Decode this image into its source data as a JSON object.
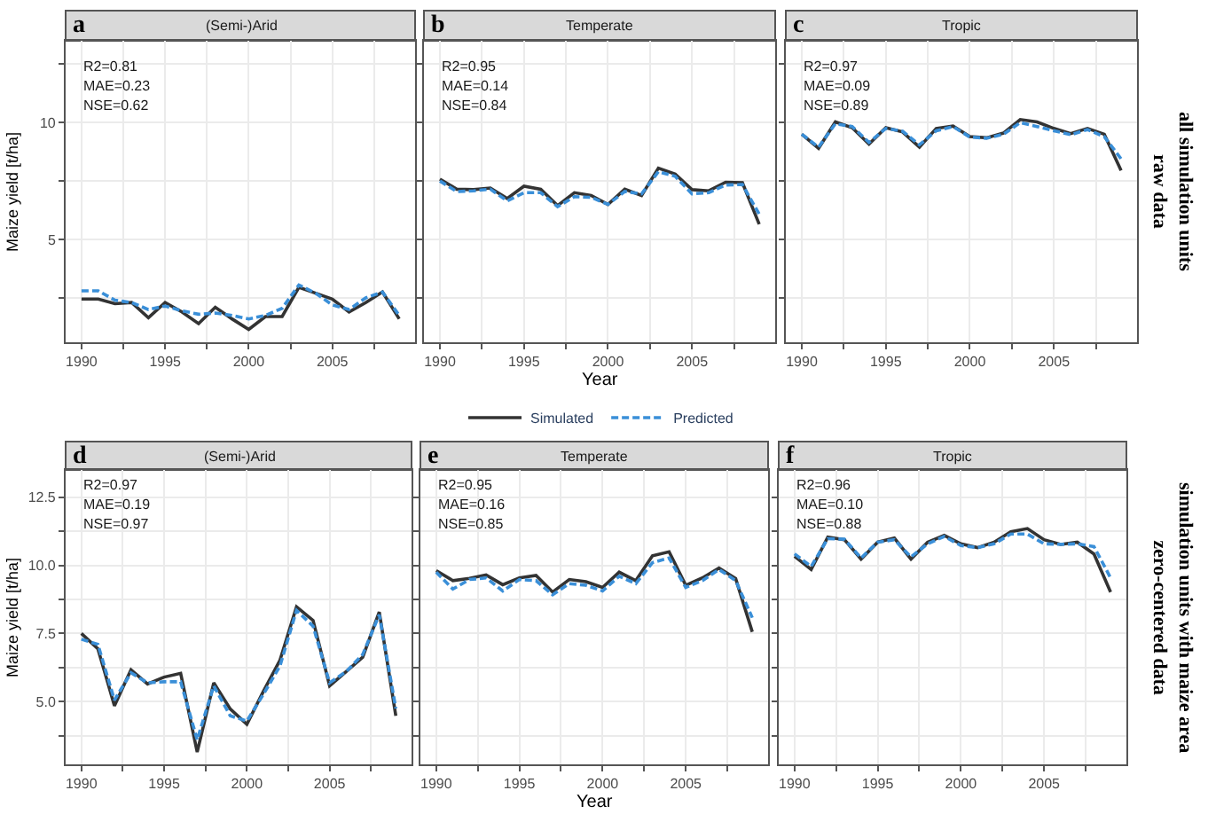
{
  "chart_data": [
    {
      "type": "line",
      "title": "(Semi-)Arid",
      "ylabel": "Maize yield [t/ha]",
      "annotations": [
        "a",
        "R2=0.81",
        "MAE=0.23",
        "NSE=0.62"
      ],
      "x": [
        1990,
        1991,
        1992,
        1993,
        1994,
        1995,
        1996,
        1997,
        1998,
        1999,
        2000,
        2001,
        2002,
        2003,
        2004,
        2005,
        2006,
        2007,
        2008,
        2009
      ],
      "xlim": [
        1989.05,
        2009.95
      ],
      "xticks": [
        1990,
        {
          "value": 1992.5,
          "label": null
        },
        1995,
        {
          "value": 1997.5,
          "label": null
        },
        2000,
        {
          "value": 2002.5,
          "label": null
        },
        2005,
        {
          "value": 2007.5,
          "label": null
        }
      ],
      "ylim": [
        0.6,
        13.5
      ],
      "yticks": [
        {
          "value": 2.5,
          "label": null
        },
        5,
        {
          "value": 7.5,
          "label": null
        },
        10,
        {
          "value": 12.5,
          "label": null
        }
      ],
      "grid": true,
      "marker": "none",
      "legend": "bottom",
      "series": [
        {
          "name": "Simulated",
          "color": "#333333",
          "line_style": "solid",
          "values": [
            2.45,
            2.45,
            2.25,
            2.3,
            1.65,
            2.3,
            1.9,
            1.4,
            2.1,
            1.6,
            1.15,
            1.7,
            1.7,
            2.95,
            2.7,
            2.45,
            1.9,
            2.3,
            2.75,
            1.6
          ]
        },
        {
          "name": "Predicted",
          "color": "#3a8fd8",
          "line_style": "dashed",
          "values": [
            2.8,
            2.8,
            2.4,
            2.3,
            2.0,
            2.15,
            1.95,
            1.8,
            1.85,
            1.75,
            1.6,
            1.75,
            2.05,
            3.05,
            2.7,
            2.2,
            2.0,
            2.5,
            2.75,
            1.75
          ]
        }
      ]
    },
    {
      "type": "line",
      "title": "Temperate",
      "xlabel": "Year",
      "annotations": [
        "b",
        "R2=0.95",
        "MAE=0.14",
        "NSE=0.84"
      ],
      "x": [
        1990,
        1991,
        1992,
        1993,
        1994,
        1995,
        1996,
        1997,
        1998,
        1999,
        2000,
        2001,
        2002,
        2003,
        2004,
        2005,
        2006,
        2007,
        2008,
        2009
      ],
      "xlim": [
        1989.05,
        2009.95
      ],
      "xticks": [
        1990,
        {
          "value": 1992.5,
          "label": null
        },
        1995,
        {
          "value": 1997.5,
          "label": null
        },
        2000,
        {
          "value": 2002.5,
          "label": null
        },
        2005,
        {
          "value": 2007.5,
          "label": null
        }
      ],
      "ylim": [
        0.6,
        13.5
      ],
      "yticks": [
        {
          "value": 2.5,
          "label": null
        },
        5,
        {
          "value": 7.5,
          "label": null
        },
        10,
        {
          "value": 12.5,
          "label": null
        }
      ],
      "grid": true,
      "marker": "none",
      "tick_labels": "x",
      "series": [
        {
          "color": "#333333",
          "line_style": "solid",
          "values": [
            7.58,
            7.15,
            7.13,
            7.2,
            6.75,
            7.28,
            7.15,
            6.45,
            7.0,
            6.88,
            6.5,
            7.15,
            6.88,
            8.05,
            7.8,
            7.13,
            7.08,
            7.45,
            7.43,
            5.65
          ]
        },
        {
          "color": "#3a8fd8",
          "line_style": "dashed",
          "values": [
            7.5,
            7.05,
            7.08,
            7.15,
            6.65,
            7.0,
            7.0,
            6.4,
            6.83,
            6.8,
            6.5,
            7.05,
            6.95,
            7.9,
            7.7,
            6.95,
            7.0,
            7.33,
            7.35,
            6.08
          ]
        }
      ]
    },
    {
      "type": "line",
      "title": "Tropic",
      "annotations": [
        "c",
        "R2=0.97",
        "MAE=0.09",
        "NSE=0.89",
        "all simulation units\nraw data"
      ],
      "x": [
        1990,
        1991,
        1992,
        1993,
        1994,
        1995,
        1996,
        1997,
        1998,
        1999,
        2000,
        2001,
        2002,
        2003,
        2004,
        2005,
        2006,
        2007,
        2008,
        2009
      ],
      "xlim": [
        1989.05,
        2009.95
      ],
      "xticks": [
        1990,
        {
          "value": 1992.5,
          "label": null
        },
        1995,
        {
          "value": 1997.5,
          "label": null
        },
        2000,
        {
          "value": 2002.5,
          "label": null
        },
        2005,
        {
          "value": 2007.5,
          "label": null
        }
      ],
      "ylim": [
        0.6,
        13.5
      ],
      "yticks": [
        {
          "value": 2.5,
          "label": null
        },
        5,
        {
          "value": 7.5,
          "label": null
        },
        10,
        {
          "value": 12.5,
          "label": null
        }
      ],
      "grid": true,
      "marker": "none",
      "tick_labels": "x",
      "series": [
        {
          "color": "#333333",
          "line_style": "solid",
          "values": [
            9.5,
            8.9,
            10.03,
            9.78,
            9.08,
            9.78,
            9.6,
            8.95,
            9.75,
            9.85,
            9.4,
            9.35,
            9.55,
            10.13,
            10.03,
            9.75,
            9.53,
            9.75,
            9.5,
            7.95
          ]
        },
        {
          "color": "#3a8fd8",
          "line_style": "dashed",
          "values": [
            9.5,
            8.95,
            9.95,
            9.83,
            9.15,
            9.75,
            9.63,
            9.05,
            9.65,
            9.83,
            9.38,
            9.33,
            9.5,
            10.0,
            9.83,
            9.65,
            9.48,
            9.7,
            9.4,
            8.45
          ]
        }
      ]
    },
    {
      "type": "line",
      "title": "(Semi-)Arid",
      "ylabel": "Maize yield [t/ha]",
      "annotations": [
        "d",
        "R2=0.97",
        "MAE=0.19",
        "NSE=0.97"
      ],
      "x": [
        1990,
        1991,
        1992,
        1993,
        1994,
        1995,
        1996,
        1997,
        1998,
        1999,
        2000,
        2001,
        2002,
        2003,
        2004,
        2005,
        2006,
        2007,
        2008,
        2009
      ],
      "xlim": [
        1989.05,
        2009.95
      ],
      "xticks": [
        1990,
        {
          "value": 1992.5,
          "label": null
        },
        1995,
        {
          "value": 1997.5,
          "label": null
        },
        2000,
        {
          "value": 2002.5,
          "label": null
        },
        2005,
        {
          "value": 2007.5,
          "label": null
        }
      ],
      "ylim": [
        2.7,
        13.5
      ],
      "yticks": [
        {
          "value": 3.75,
          "label": null
        },
        {
          "value": 5,
          "label": "5.0"
        },
        {
          "value": 6.25,
          "label": null
        },
        7.5,
        {
          "value": 8.75,
          "label": null
        },
        {
          "value": 10,
          "label": "10.0"
        },
        {
          "value": 11.25,
          "label": null
        },
        12.5
      ],
      "grid": true,
      "marker": "none",
      "series": [
        {
          "color": "#333333",
          "line_style": "solid",
          "values": [
            7.5,
            6.94,
            4.85,
            6.17,
            5.65,
            5.9,
            6.04,
            3.15,
            5.69,
            4.73,
            4.17,
            5.38,
            6.52,
            8.48,
            7.98,
            5.58,
            6.1,
            6.63,
            8.29,
            4.48
          ]
        },
        {
          "color": "#3a8fd8",
          "line_style": "dashed",
          "values": [
            7.29,
            7.1,
            5.06,
            6.06,
            5.69,
            5.73,
            5.73,
            3.6,
            5.58,
            4.48,
            4.29,
            5.27,
            6.31,
            8.35,
            7.77,
            5.69,
            6.1,
            6.73,
            8.19,
            4.75
          ]
        }
      ]
    },
    {
      "type": "line",
      "title": "Temperate",
      "xlabel": "Year",
      "annotations": [
        "e",
        "R2=0.95",
        "MAE=0.16",
        "NSE=0.85"
      ],
      "x": [
        1990,
        1991,
        1992,
        1993,
        1994,
        1995,
        1996,
        1997,
        1998,
        1999,
        2000,
        2001,
        2002,
        2003,
        2004,
        2005,
        2006,
        2007,
        2008,
        2009
      ],
      "xlim": [
        1989.05,
        2009.95
      ],
      "xticks": [
        1990,
        {
          "value": 1992.5,
          "label": null
        },
        1995,
        {
          "value": 1997.5,
          "label": null
        },
        2000,
        {
          "value": 2002.5,
          "label": null
        },
        2005,
        {
          "value": 2007.5,
          "label": null
        }
      ],
      "ylim": [
        2.7,
        13.5
      ],
      "yticks": [
        {
          "value": 3.75,
          "label": null
        },
        5,
        {
          "value": 6.25,
          "label": null
        },
        7.5,
        {
          "value": 8.75,
          "label": null
        },
        10,
        {
          "value": 11.25,
          "label": null
        },
        12.5
      ],
      "grid": true,
      "marker": "none",
      "tick_labels": "x",
      "series": [
        {
          "color": "#333333",
          "line_style": "solid",
          "values": [
            9.81,
            9.44,
            9.52,
            9.65,
            9.29,
            9.54,
            9.63,
            9.02,
            9.48,
            9.4,
            9.19,
            9.75,
            9.44,
            10.35,
            10.5,
            9.27,
            9.54,
            9.9,
            9.52,
            7.56
          ]
        },
        {
          "color": "#3a8fd8",
          "line_style": "dashed",
          "values": [
            9.75,
            9.13,
            9.48,
            9.54,
            9.06,
            9.48,
            9.44,
            8.92,
            9.33,
            9.27,
            9.06,
            9.6,
            9.33,
            10.1,
            10.27,
            9.19,
            9.44,
            9.85,
            9.44,
            8.08
          ]
        }
      ]
    },
    {
      "type": "line",
      "title": "Tropic",
      "annotations": [
        "f",
        "R2=0.96",
        "MAE=0.10",
        "NSE=0.88",
        "simulation units with maize area\nzero-centered data"
      ],
      "x": [
        1990,
        1991,
        1992,
        1993,
        1994,
        1995,
        1996,
        1997,
        1998,
        1999,
        2000,
        2001,
        2002,
        2003,
        2004,
        2005,
        2006,
        2007,
        2008,
        2009
      ],
      "xlim": [
        1989.05,
        2009.95
      ],
      "xticks": [
        1990,
        {
          "value": 1992.5,
          "label": null
        },
        1995,
        {
          "value": 1997.5,
          "label": null
        },
        2000,
        {
          "value": 2002.5,
          "label": null
        },
        2005,
        {
          "value": 2007.5,
          "label": null
        }
      ],
      "ylim": [
        2.7,
        13.5
      ],
      "yticks": [
        {
          "value": 3.75,
          "label": null
        },
        5,
        {
          "value": 6.25,
          "label": null
        },
        7.5,
        {
          "value": 8.75,
          "label": null
        },
        10,
        {
          "value": 11.25,
          "label": null
        },
        12.5
      ],
      "grid": true,
      "marker": "none",
      "tick_labels": "x",
      "series": [
        {
          "color": "#333333",
          "line_style": "solid",
          "values": [
            10.33,
            9.85,
            11.04,
            10.94,
            10.23,
            10.85,
            11.0,
            10.23,
            10.85,
            11.1,
            10.79,
            10.65,
            10.85,
            11.23,
            11.35,
            10.94,
            10.77,
            10.85,
            10.42,
            9.02
          ]
        },
        {
          "color": "#3a8fd8",
          "line_style": "dashed",
          "values": [
            10.42,
            9.96,
            10.98,
            10.96,
            10.27,
            10.85,
            10.94,
            10.31,
            10.79,
            11.06,
            10.73,
            10.65,
            10.79,
            11.15,
            11.15,
            10.79,
            10.77,
            10.79,
            10.69,
            9.54
          ]
        }
      ]
    }
  ]
}
